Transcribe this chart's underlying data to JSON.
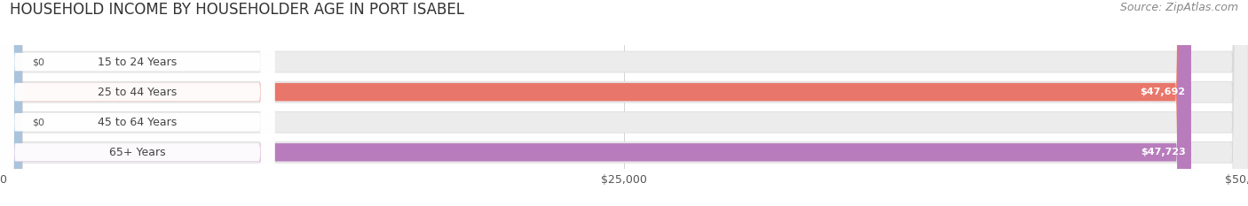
{
  "title": "HOUSEHOLD INCOME BY HOUSEHOLDER AGE IN PORT ISABEL",
  "source": "Source: ZipAtlas.com",
  "categories": [
    "15 to 24 Years",
    "25 to 44 Years",
    "45 to 64 Years",
    "65+ Years"
  ],
  "values": [
    0,
    47692,
    0,
    47723
  ],
  "value_labels": [
    "$0",
    "$47,692",
    "$0",
    "$47,723"
  ],
  "bar_colors": [
    "#f5c89a",
    "#e8766a",
    "#aac4dd",
    "#b87cbd"
  ],
  "track_color": "#ececec",
  "track_border_color": "#d8d8d8",
  "xlim_max": 50000,
  "xtick_labels": [
    "$0",
    "$25,000",
    "$50,000"
  ],
  "xtick_vals": [
    0,
    25000,
    50000
  ],
  "title_fontsize": 12,
  "source_fontsize": 9,
  "tick_fontsize": 9,
  "bar_label_fontsize": 8,
  "category_fontsize": 9,
  "figsize": [
    14.06,
    2.33
  ],
  "dpi": 100,
  "bg_color": "#ffffff"
}
